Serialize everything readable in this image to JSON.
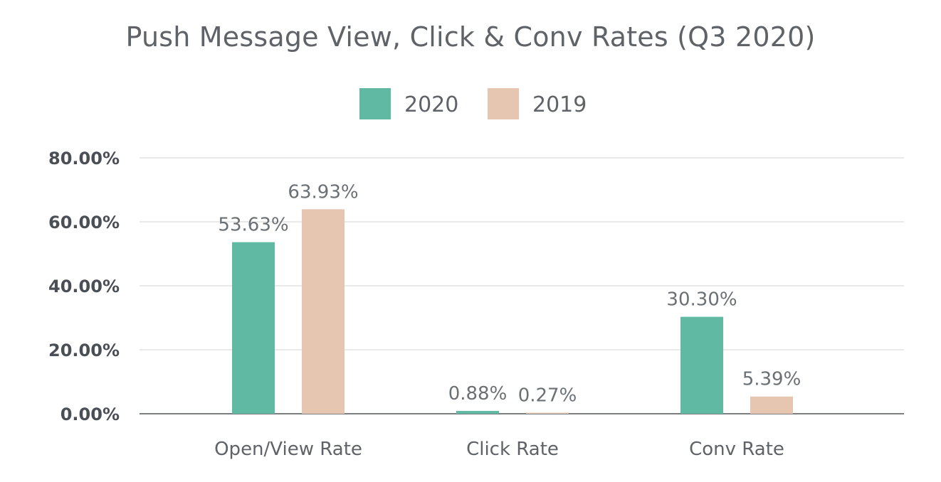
{
  "chart_data": {
    "type": "bar",
    "title": "Push Message View, Click & Conv Rates (Q3 2020)",
    "categories": [
      "Open/View Rate",
      "Click Rate",
      "Conv Rate"
    ],
    "series": [
      {
        "name": "2020",
        "values": [
          53.63,
          0.88,
          30.3
        ],
        "labels": [
          "53.63%",
          "0.88%",
          "30.30%"
        ],
        "color": "#5fb9a3"
      },
      {
        "name": "2019",
        "values": [
          63.93,
          0.27,
          5.39
        ],
        "labels": [
          "63.93%",
          "0.27%",
          "5.39%"
        ],
        "color": "#e6c6b1"
      }
    ],
    "yticks": [
      0,
      20,
      40,
      60,
      80
    ],
    "ytick_labels": [
      "0.00%",
      "20.00%",
      "40.00%",
      "60.00%",
      "80.00%"
    ],
    "ylim": [
      0,
      80
    ],
    "grid": true,
    "legend": "top-center",
    "xlabel": "",
    "ylabel": ""
  }
}
